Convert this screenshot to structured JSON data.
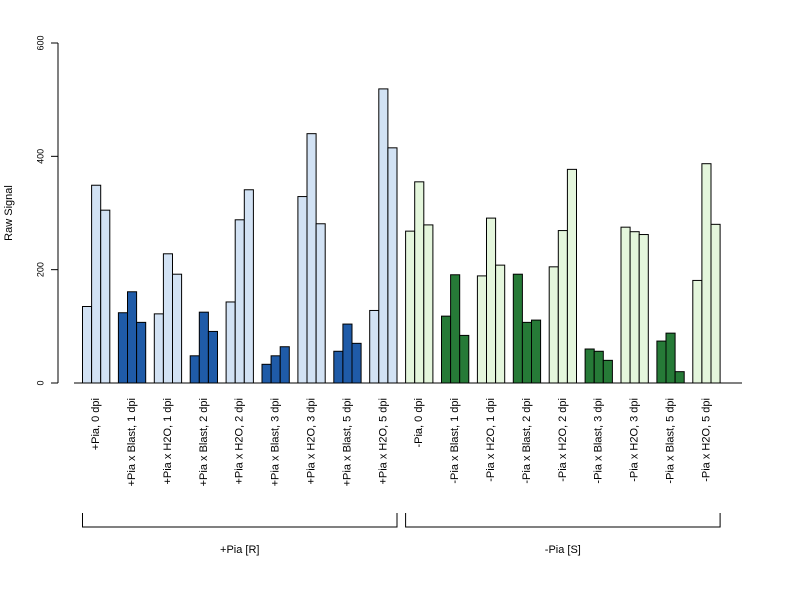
{
  "chart_data": {
    "type": "bar",
    "ylabel": "Raw Signal",
    "xlabel": "",
    "ylim": [
      0,
      600
    ],
    "yticks": [
      0,
      200,
      400,
      600
    ],
    "grid": false,
    "legend": "none",
    "bars_per_category": 3,
    "categories": [
      "+Pia, 0 dpi",
      "+Pia x Blast, 1 dpi",
      "+Pia x H2O, 1 dpi",
      "+Pia x Blast, 2 dpi",
      "+Pia x H2O, 2 dpi",
      "+Pia x Blast, 3 dpi",
      "+Pia x H2O, 3 dpi",
      "+Pia x Blast, 5 dpi",
      "+Pia x H2O, 5 dpi",
      "-Pia, 0 dpi",
      "-Pia x Blast, 1 dpi",
      "-Pia x H2O, 1 dpi",
      "-Pia x Blast, 2 dpi",
      "-Pia x H2O, 2 dpi",
      "-Pia x Blast, 3 dpi",
      "-Pia x H2O, 3 dpi",
      "-Pia x Blast, 5 dpi",
      "-Pia x H2O, 5 dpi"
    ],
    "values": [
      [
        135,
        349,
        305
      ],
      [
        124,
        161,
        107
      ],
      [
        122,
        228,
        192
      ],
      [
        48,
        125,
        91
      ],
      [
        143,
        288,
        341
      ],
      [
        33,
        48,
        64
      ],
      [
        329,
        440,
        281
      ],
      [
        56,
        104,
        70
      ],
      [
        128,
        519,
        415
      ],
      [
        268,
        355,
        279
      ],
      [
        118,
        191,
        84
      ],
      [
        189,
        291,
        208
      ],
      [
        192,
        107,
        111
      ],
      [
        205,
        269,
        377
      ],
      [
        60,
        56,
        40
      ],
      [
        275,
        267,
        262
      ],
      [
        74,
        88,
        20
      ],
      [
        181,
        387,
        280
      ]
    ],
    "bar_colors": [
      "#d2e2f4",
      "#1f5ba8",
      "#d2e2f4",
      "#1f5ba8",
      "#d2e2f4",
      "#1f5ba8",
      "#d2e2f4",
      "#1f5ba8",
      "#d2e2f4",
      "#e4f6dc",
      "#267a37",
      "#e4f6dc",
      "#267a37",
      "#e4f6dc",
      "#267a37",
      "#e4f6dc",
      "#267a37",
      "#e4f6dc"
    ],
    "groups": [
      {
        "label": "+Pia [R]",
        "from": 0,
        "to": 8
      },
      {
        "label": "-Pia [S]",
        "from": 9,
        "to": 17
      }
    ]
  }
}
